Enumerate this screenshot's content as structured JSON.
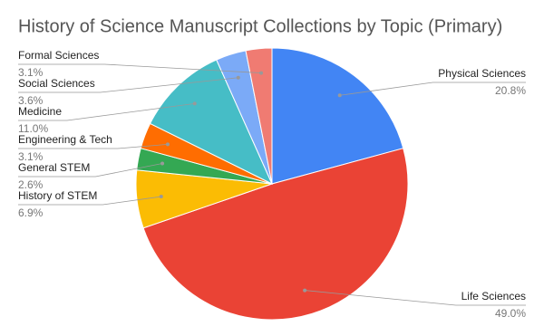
{
  "chart_data": {
    "type": "pie",
    "title": "History of Science Manuscript Collections by Topic (Primary)",
    "categories": [
      "Physical Sciences",
      "Life Sciences",
      "History of STEM",
      "General STEM",
      "Engineering & Tech",
      "Medicine",
      "Social Sciences",
      "Formal Sciences"
    ],
    "values": [
      20.8,
      49.0,
      6.9,
      2.6,
      3.1,
      11.0,
      3.6,
      3.1
    ],
    "value_labels": [
      "20.8%",
      "49.0%",
      "6.9%",
      "2.6%",
      "3.1%",
      "11.0%",
      "3.6%",
      "3.1%"
    ],
    "colors": [
      "#4285f4",
      "#ea4335",
      "#fbbc04",
      "#34a853",
      "#ff6d01",
      "#46bdc6",
      "#7baaf7",
      "#f07b72"
    ]
  }
}
